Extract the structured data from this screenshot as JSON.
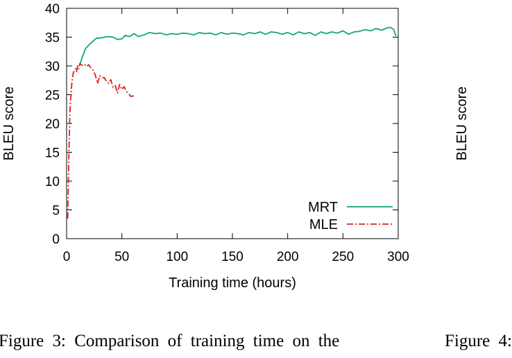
{
  "chart_data": {
    "type": "line",
    "title": "",
    "xlabel": "Training time (hours)",
    "ylabel": "BLEU score",
    "xlim": [
      0,
      300
    ],
    "ylim": [
      0,
      40
    ],
    "xticks": [
      0,
      50,
      100,
      150,
      200,
      250,
      300
    ],
    "yticks": [
      0,
      5,
      10,
      15,
      20,
      25,
      30,
      35,
      40
    ],
    "legend_position": "bottom-right",
    "series": [
      {
        "name": "MRT",
        "color": "#11a37f",
        "style": "solid",
        "x": [
          12,
          17,
          22,
          27,
          32,
          37,
          42,
          46,
          50,
          53,
          57,
          61,
          65,
          70,
          75,
          80,
          85,
          90,
          95,
          100,
          105,
          110,
          115,
          120,
          125,
          130,
          135,
          140,
          145,
          150,
          155,
          160,
          165,
          170,
          175,
          180,
          185,
          190,
          195,
          200,
          205,
          210,
          215,
          220,
          225,
          230,
          235,
          240,
          245,
          250,
          255,
          260,
          265,
          270,
          275,
          280,
          285,
          290,
          293,
          296,
          298
        ],
        "y": [
          30.3,
          33.0,
          34.0,
          34.8,
          34.9,
          35.1,
          35.0,
          34.6,
          34.7,
          35.3,
          35.1,
          35.6,
          35.1,
          35.4,
          35.8,
          35.6,
          35.7,
          35.4,
          35.6,
          35.5,
          35.7,
          35.6,
          35.4,
          35.8,
          35.6,
          35.7,
          35.4,
          35.8,
          35.5,
          35.7,
          35.6,
          35.4,
          35.8,
          35.6,
          35.9,
          35.5,
          35.9,
          35.8,
          35.5,
          35.8,
          35.4,
          35.9,
          35.6,
          35.8,
          35.3,
          35.9,
          35.6,
          35.9,
          35.7,
          36.1,
          35.5,
          35.9,
          36.0,
          36.3,
          36.1,
          36.5,
          36.2,
          36.6,
          36.7,
          36.3,
          35.2
        ]
      },
      {
        "name": "MLE",
        "color": "#d62020",
        "style": "dashdot",
        "x": [
          1,
          2,
          3,
          4,
          5,
          6,
          7,
          8,
          9,
          10,
          11,
          12,
          14,
          16,
          18,
          20,
          22,
          24,
          26,
          28,
          30,
          32,
          34,
          36,
          38,
          40,
          42,
          44,
          46,
          48,
          50,
          52,
          54,
          56,
          58,
          60,
          62
        ],
        "y": [
          3.5,
          14.0,
          22.0,
          25.5,
          27.5,
          28.8,
          29.2,
          29.5,
          29.0,
          30.0,
          29.5,
          30.4,
          30.1,
          30.3,
          29.9,
          30.2,
          29.6,
          29.3,
          28.4,
          26.9,
          28.3,
          27.9,
          28.0,
          27.3,
          27.0,
          27.6,
          26.3,
          26.6,
          25.3,
          26.8,
          25.9,
          26.4,
          25.6,
          25.2,
          24.7,
          24.8,
          24.5
        ]
      }
    ]
  },
  "caption": {
    "left": "Figure 3:  Comparison of training time on the",
    "right": "Figure 4:"
  }
}
